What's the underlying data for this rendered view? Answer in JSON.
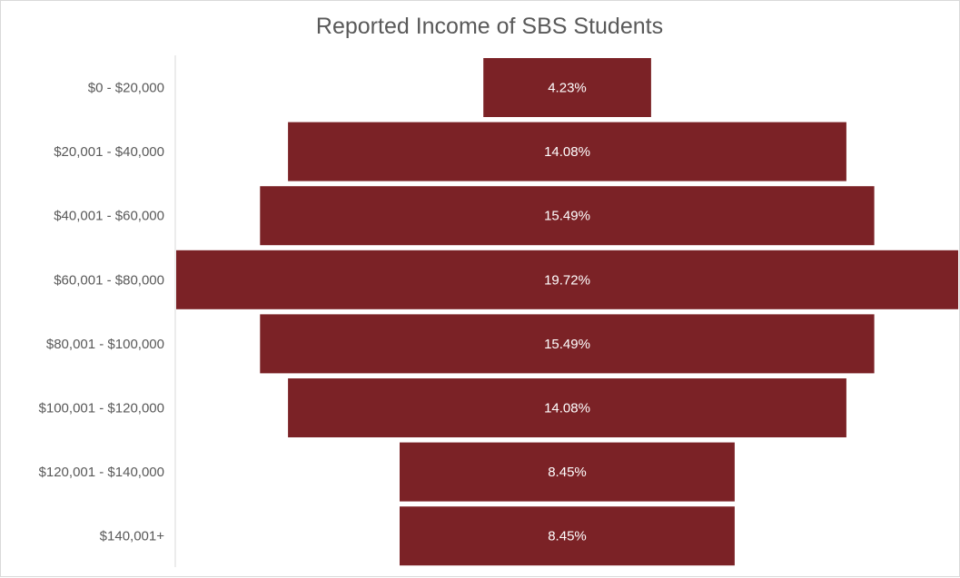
{
  "chart_data": {
    "type": "bar",
    "orientation": "horizontal-centered",
    "title": "Reported Income of SBS Students",
    "categories": [
      "$0 - $20,000",
      "$20,001 - $40,000",
      "$40,001 - $60,000",
      "$60,001 - $80,000",
      "$80,001 - $100,000",
      "$100,001 - $120,000",
      "$120,001 - $140,000",
      "$140,001+"
    ],
    "values": [
      4.23,
      14.08,
      15.49,
      19.72,
      15.49,
      14.08,
      8.45,
      8.45
    ],
    "data_labels": [
      "4.23%",
      "14.08%",
      "15.49%",
      "19.72%",
      "15.49%",
      "14.08%",
      "8.45%",
      "8.45%"
    ],
    "bar_color": "#7b2226",
    "grid": false,
    "legend": "none"
  }
}
